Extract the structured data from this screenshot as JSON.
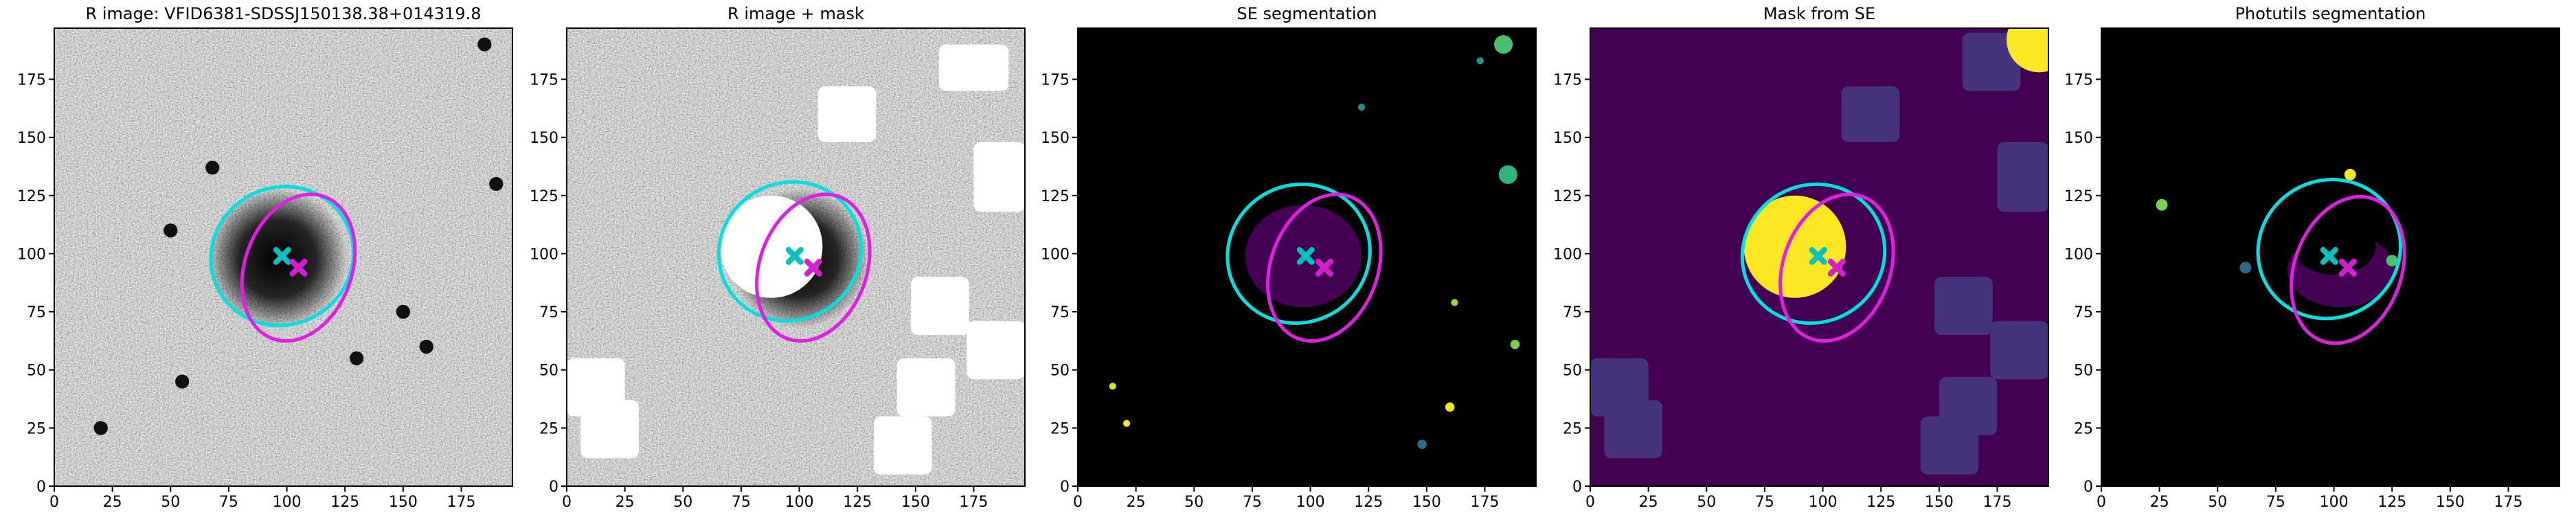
{
  "chart_data": [
    {
      "type": "image",
      "title": "R image: VFID6381-SDSSJ150138.38+014319.8",
      "xlim": [
        0,
        197
      ],
      "ylim": [
        0,
        197
      ],
      "xticks": [
        0,
        25,
        50,
        75,
        100,
        125,
        150,
        175
      ],
      "yticks": [
        0,
        25,
        50,
        75,
        100,
        125,
        150,
        175
      ],
      "ellipses": [
        {
          "color": "#00e0e0",
          "center": [
            98,
            99
          ],
          "width": 62,
          "height": 59,
          "angle": 30
        },
        {
          "color": "#e020e0",
          "center": [
            105,
            94
          ],
          "width": 65,
          "height": 46,
          "angle": 70
        }
      ],
      "markers": [
        {
          "color": "#00c0c0",
          "x": 98,
          "y": 99
        },
        {
          "color": "#d020d0",
          "x": 105,
          "y": 94
        }
      ]
    },
    {
      "type": "image",
      "title": "R image + mask",
      "xlim": [
        0,
        197
      ],
      "ylim": [
        0,
        197
      ],
      "xticks": [
        0,
        25,
        50,
        75,
        100,
        125,
        150,
        175
      ],
      "yticks": [
        0,
        25,
        50,
        75,
        100,
        125,
        150,
        175
      ],
      "ellipses": [
        {
          "color": "#00e0e0",
          "center": [
            96,
            101
          ],
          "width": 62,
          "height": 59,
          "angle": 30
        },
        {
          "color": "#e020e0",
          "center": [
            106,
            94
          ],
          "width": 65,
          "height": 46,
          "angle": 70
        }
      ],
      "markers": [
        {
          "color": "#00c0c0",
          "x": 98,
          "y": 99
        },
        {
          "color": "#d020d0",
          "x": 106,
          "y": 94
        }
      ]
    },
    {
      "type": "image",
      "title": "SE segmentation",
      "xlim": [
        0,
        197
      ],
      "ylim": [
        0,
        197
      ],
      "xticks": [
        0,
        25,
        50,
        75,
        100,
        125,
        150,
        175
      ],
      "yticks": [
        0,
        25,
        50,
        75,
        100,
        125,
        150,
        175
      ],
      "ellipses": [
        {
          "color": "#00e0e0",
          "center": [
            95,
            100
          ],
          "width": 62,
          "height": 59,
          "angle": 30
        },
        {
          "color": "#e020e0",
          "center": [
            106,
            94
          ],
          "width": 65,
          "height": 46,
          "angle": 70
        }
      ],
      "markers": [
        {
          "color": "#00c0c0",
          "x": 98,
          "y": 99
        },
        {
          "color": "#d020d0",
          "x": 106,
          "y": 94
        }
      ]
    },
    {
      "type": "image",
      "title": "Mask from SE",
      "xlim": [
        0,
        197
      ],
      "ylim": [
        0,
        197
      ],
      "xticks": [
        0,
        25,
        50,
        75,
        100,
        125,
        150,
        175
      ],
      "yticks": [
        0,
        25,
        50,
        75,
        100,
        125,
        150,
        175
      ],
      "ellipses": [
        {
          "color": "#00e0e0",
          "center": [
            96,
            100
          ],
          "width": 62,
          "height": 59,
          "angle": 30
        },
        {
          "color": "#e020e0",
          "center": [
            106,
            94
          ],
          "width": 65,
          "height": 46,
          "angle": 70
        }
      ],
      "markers": [
        {
          "color": "#00c0c0",
          "x": 98,
          "y": 99
        },
        {
          "color": "#d020d0",
          "x": 106,
          "y": 94
        }
      ]
    },
    {
      "type": "image",
      "title": "Photutils segmentation",
      "xlim": [
        0,
        197
      ],
      "ylim": [
        0,
        197
      ],
      "xticks": [
        0,
        25,
        50,
        75,
        100,
        125,
        150,
        175
      ],
      "yticks": [
        0,
        25,
        50,
        75,
        100,
        125,
        150,
        175
      ],
      "ellipses": [
        {
          "color": "#00e0e0",
          "center": [
            98,
            102
          ],
          "width": 62,
          "height": 59,
          "angle": 30
        },
        {
          "color": "#e020e0",
          "center": [
            106,
            93
          ],
          "width": 65,
          "height": 46,
          "angle": 70
        }
      ],
      "markers": [
        {
          "color": "#00c0c0",
          "x": 98,
          "y": 99
        },
        {
          "color": "#d020d0",
          "x": 106,
          "y": 94
        }
      ]
    }
  ]
}
